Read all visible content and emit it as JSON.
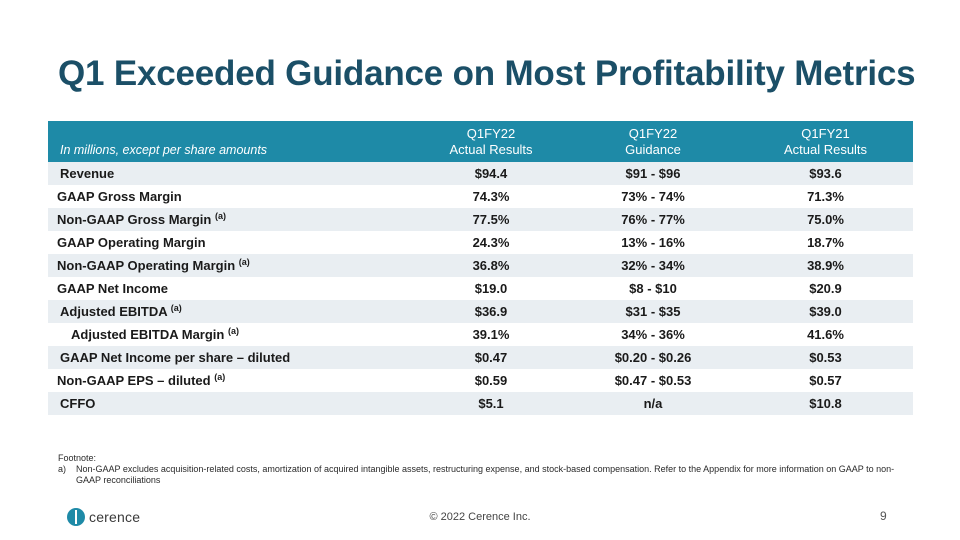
{
  "slide": {
    "title": "Q1 Exceeded Guidance on Most Profitability Metrics",
    "page_number": "9",
    "copyright": "© 2022 Cerence Inc.",
    "logo_text": "cerence"
  },
  "table": {
    "units_label": "In millions, except per share amounts",
    "columns": [
      {
        "line1": "Q1FY22",
        "line2": "Actual Results"
      },
      {
        "line1": "Q1FY22",
        "line2": "Guidance"
      },
      {
        "line1": "Q1FY21",
        "line2": "Actual Results"
      }
    ],
    "rows": [
      {
        "metric": "Revenue",
        "footnote": "",
        "actual": "$94.4",
        "guidance": "$91 - $96",
        "prior": "$93.6"
      },
      {
        "metric": "GAAP Gross Margin",
        "footnote": "",
        "actual": "74.3%",
        "guidance": "73% - 74%",
        "prior": "71.3%"
      },
      {
        "metric": "Non-GAAP Gross Margin",
        "footnote": "(a)",
        "actual": "77.5%",
        "guidance": "76% - 77%",
        "prior": "75.0%"
      },
      {
        "metric": "GAAP Operating Margin",
        "footnote": "",
        "actual": "24.3%",
        "guidance": "13% - 16%",
        "prior": "18.7%"
      },
      {
        "metric": "Non-GAAP Operating Margin",
        "footnote": "(a)",
        "actual": "36.8%",
        "guidance": "32% - 34%",
        "prior": "38.9%"
      },
      {
        "metric": "GAAP Net Income",
        "footnote": "",
        "actual": "$19.0",
        "guidance": "$8 - $10",
        "prior": "$20.9"
      },
      {
        "metric": "Adjusted EBITDA",
        "footnote": "(a)",
        "actual": "$36.9",
        "guidance": "$31 - $35",
        "prior": "$39.0"
      },
      {
        "metric": "Adjusted EBITDA Margin",
        "footnote": "(a)",
        "actual": "39.1%",
        "guidance": "34% - 36%",
        "prior": "41.6%"
      },
      {
        "metric": "GAAP Net Income per share – diluted",
        "footnote": "",
        "actual": "$0.47",
        "guidance": "$0.20 - $0.26",
        "prior": "$0.53"
      },
      {
        "metric": "Non-GAAP EPS – diluted",
        "footnote": "(a)",
        "actual": "$0.59",
        "guidance": "$0.47 - $0.53",
        "prior": "$0.57"
      },
      {
        "metric": "CFFO",
        "footnote": "",
        "actual": "$5.1",
        "guidance": "n/a",
        "prior": "$10.8"
      }
    ]
  },
  "footnote": {
    "heading": "Footnote:",
    "letter": "a)",
    "text": "Non-GAAP excludes acquisition-related costs, amortization of acquired intangible assets, restructuring expense, and stock-based compensation.  Refer to the Appendix for more information on GAAP to non-GAAP reconciliations"
  },
  "colors": {
    "title": "#1b4f67",
    "header_bg": "#1e8aa7",
    "band_bg": "#e9eef2",
    "logo_teal": "#1e8aa7"
  }
}
